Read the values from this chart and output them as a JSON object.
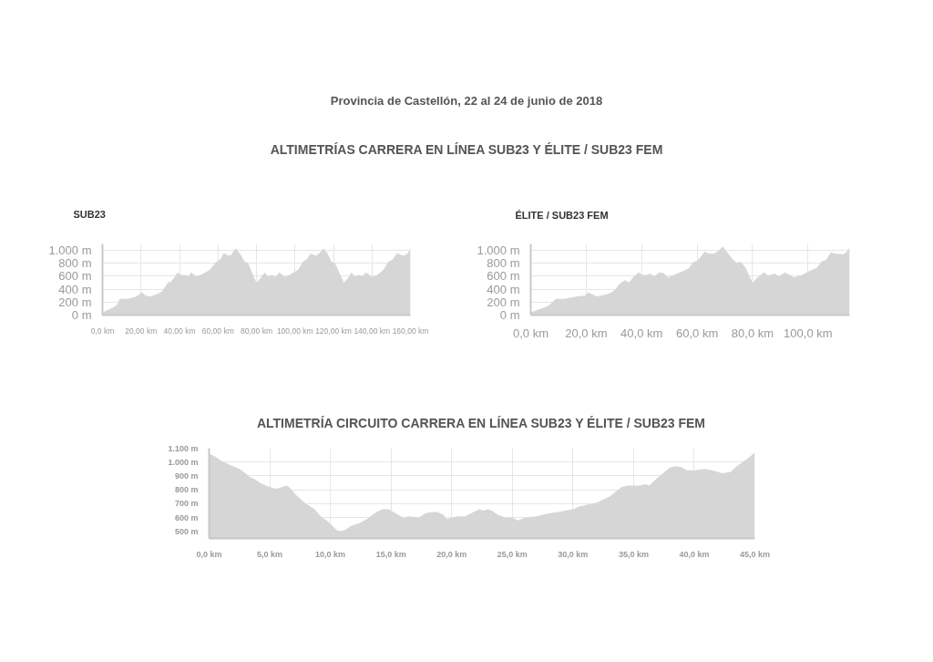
{
  "chart_data": [
    {
      "type": "area",
      "title": "SUB23",
      "annotations": [
        "Provincia de Castellón, 22 al 24 de junio de 2018",
        "ALTIMETRÍAS CARRERA EN LÍNEA SUB23 Y ÉLITE / SUB23 FEM"
      ],
      "color": "#d6d6d6",
      "grid": true,
      "x": [
        0,
        1.9,
        5,
        7.4,
        9,
        13,
        16,
        17.7,
        20.5,
        22.5,
        25,
        29,
        31,
        33,
        34.4,
        35.2,
        36.8,
        39,
        40.7,
        43,
        44.7,
        46,
        48.6,
        51,
        55.8,
        59,
        61.3,
        63,
        65.3,
        66.8,
        69.2,
        71.6,
        74,
        75.6,
        77,
        80,
        81.8,
        84.3,
        85.9,
        88,
        89.8,
        92,
        94.6,
        97,
        101.7,
        104,
        106,
        108,
        111,
        112.8,
        114.7,
        116.8,
        119,
        120.6,
        123,
        125.4,
        127.8,
        129.4,
        131,
        133.4,
        135,
        137,
        140,
        142.9,
        146,
        148.4,
        150.8,
        153,
        154.8,
        157,
        158.7,
        160
      ],
      "values": [
        30,
        70,
        110,
        150,
        250,
        250,
        270,
        290,
        350,
        300,
        290,
        330,
        370,
        460,
        520,
        500,
        560,
        660,
        620,
        620,
        600,
        660,
        600,
        620,
        700,
        820,
        860,
        960,
        920,
        930,
        1030,
        940,
        820,
        810,
        700,
        500,
        560,
        660,
        600,
        620,
        590,
        660,
        590,
        620,
        700,
        820,
        860,
        950,
        920,
        960,
        1030,
        960,
        820,
        810,
        660,
        500,
        580,
        660,
        600,
        620,
        600,
        660,
        590,
        620,
        700,
        820,
        860,
        960,
        930,
        920,
        960,
        1040
      ],
      "xlim": [
        0,
        160
      ],
      "ylim": [
        0,
        1100
      ],
      "xticks": [
        {
          "value": 0,
          "label": "0,0 km"
        },
        {
          "value": 20,
          "label": "20,00 km"
        },
        {
          "value": 40,
          "label": "40,00 km"
        },
        {
          "value": 60,
          "label": "60,00 km"
        },
        {
          "value": 80,
          "label": "80,00 km"
        },
        {
          "value": 100,
          "label": "100,00 km"
        },
        {
          "value": 120,
          "label": "120,00 km"
        },
        {
          "value": 140,
          "label": "140,00 km"
        },
        {
          "value": 160,
          "label": "160,00 km"
        }
      ],
      "yticks": [
        {
          "value": 0,
          "label": "0 m"
        },
        {
          "value": 200,
          "label": "200 m"
        },
        {
          "value": 400,
          "label": "400 m"
        },
        {
          "value": 600,
          "label": "600 m"
        },
        {
          "value": 800,
          "label": "800 m"
        },
        {
          "value": 1000,
          "label": "1.000 m"
        }
      ]
    },
    {
      "type": "area",
      "title": "ÉLITE / SUB23 FEM",
      "color": "#d6d6d6",
      "grid": true,
      "x": [
        0,
        2.4,
        5.2,
        6.8,
        9,
        12.3,
        14.5,
        16.7,
        19.5,
        20.8,
        22.1,
        23.8,
        26.5,
        28.7,
        30.4,
        32,
        33.1,
        34.2,
        35.3,
        36.9,
        38.8,
        40.2,
        41.9,
        43,
        44.6,
        46.3,
        47.9,
        49.5,
        52.8,
        55,
        57.2,
        58.3,
        60,
        61.1,
        62.7,
        64.3,
        66,
        67.6,
        69.3,
        70.9,
        72.6,
        74.2,
        75.8,
        77.5,
        80,
        81.3,
        84.1,
        85.7,
        87.9,
        89.5,
        91.7,
        95,
        97.8,
        101,
        103.2,
        104.9,
        106.5,
        108.2,
        109.8,
        112.6,
        113.7,
        115
      ],
      "values": [
        40,
        80,
        120,
        160,
        250,
        250,
        270,
        290,
        300,
        350,
        320,
        290,
        310,
        340,
        390,
        480,
        520,
        540,
        500,
        580,
        660,
        620,
        620,
        640,
        600,
        660,
        650,
        580,
        640,
        680,
        730,
        810,
        840,
        890,
        980,
        950,
        950,
        990,
        1060,
        970,
        870,
        810,
        820,
        730,
        500,
        560,
        660,
        610,
        640,
        600,
        660,
        580,
        620,
        690,
        730,
        830,
        850,
        970,
        950,
        940,
        970,
        1040
      ],
      "xlim": [
        0,
        115
      ],
      "ylim": [
        0,
        1100
      ],
      "xticks": [
        {
          "value": 0,
          "label": "0,0 km"
        },
        {
          "value": 20,
          "label": "20,0 km"
        },
        {
          "value": 40,
          "label": "40,0 km"
        },
        {
          "value": 60,
          "label": "60,0 km"
        },
        {
          "value": 80,
          "label": "80,0 km"
        },
        {
          "value": 100,
          "label": "100,0 km"
        }
      ],
      "yticks": [
        {
          "value": 0,
          "label": "0 m"
        },
        {
          "value": 200,
          "label": "200 m"
        },
        {
          "value": 400,
          "label": "400 m"
        },
        {
          "value": 600,
          "label": "600 m"
        },
        {
          "value": 800,
          "label": "800 m"
        },
        {
          "value": 1000,
          "label": "1.000 m"
        }
      ]
    },
    {
      "type": "area",
      "title": "ALTIMETRÍA CIRCUITO CARRERA EN LÍNEA SUB23 Y ÉLITE / SUB23 FEM",
      "color": "#d6d6d6",
      "grid": true,
      "x": [
        0,
        0.5,
        1,
        1.7,
        2.5,
        3,
        3.4,
        3.7,
        4.2,
        4.7,
        5.4,
        5.6,
        6,
        6.4,
        6.6,
        7.2,
        8,
        8.7,
        9.2,
        9.7,
        10.4,
        10.7,
        11.2,
        11.7,
        12.4,
        13,
        13.8,
        14.3,
        14.8,
        15.4,
        16,
        16.5,
        17.3,
        17.8,
        18.3,
        18.8,
        19.3,
        19.6,
        20,
        20.5,
        21.1,
        21.8,
        22.3,
        22.6,
        23,
        23.3,
        23.8,
        24.5,
        25,
        25.5,
        26,
        27,
        28,
        28.8,
        30,
        30.5,
        32,
        33,
        34,
        34.5,
        35.5,
        36,
        36.3,
        37,
        38,
        38.5,
        39,
        39.4,
        40,
        40.9,
        41.5,
        42.3,
        43,
        43.5,
        44,
        44.6,
        45
      ],
      "values": [
        1060,
        1040,
        1010,
        980,
        950,
        920,
        890,
        880,
        850,
        830,
        810,
        810,
        820,
        830,
        820,
        760,
        700,
        660,
        610,
        580,
        520,
        500,
        510,
        540,
        560,
        590,
        640,
        660,
        660,
        630,
        600,
        610,
        600,
        630,
        640,
        640,
        620,
        590,
        600,
        610,
        610,
        640,
        660,
        650,
        660,
        650,
        620,
        600,
        600,
        580,
        600,
        610,
        630,
        640,
        660,
        680,
        710,
        750,
        820,
        830,
        830,
        840,
        830,
        890,
        960,
        970,
        960,
        940,
        940,
        950,
        940,
        920,
        930,
        970,
        1000,
        1040,
        1070
      ],
      "xlim": [
        0,
        45
      ],
      "ylim": [
        450,
        1100
      ],
      "xticks": [
        {
          "value": 0,
          "label": "0,0 km"
        },
        {
          "value": 5,
          "label": "5,0 km"
        },
        {
          "value": 10,
          "label": "10,0 km"
        },
        {
          "value": 15,
          "label": "15,0 km"
        },
        {
          "value": 20,
          "label": "20,0 km"
        },
        {
          "value": 25,
          "label": "25,0 km"
        },
        {
          "value": 30,
          "label": "30,0 km"
        },
        {
          "value": 35,
          "label": "35,0 km"
        },
        {
          "value": 40,
          "label": "40,0 km"
        },
        {
          "value": 45,
          "label": "45,0 km"
        }
      ],
      "yticks": [
        {
          "value": 500,
          "label": "500 m"
        },
        {
          "value": 600,
          "label": "600 m"
        },
        {
          "value": 700,
          "label": "700 m"
        },
        {
          "value": 800,
          "label": "800 m"
        },
        {
          "value": 900,
          "label": "900 m"
        },
        {
          "value": 1000,
          "label": "1.000 m"
        },
        {
          "value": 1100,
          "label": "1.100 m"
        }
      ]
    }
  ]
}
